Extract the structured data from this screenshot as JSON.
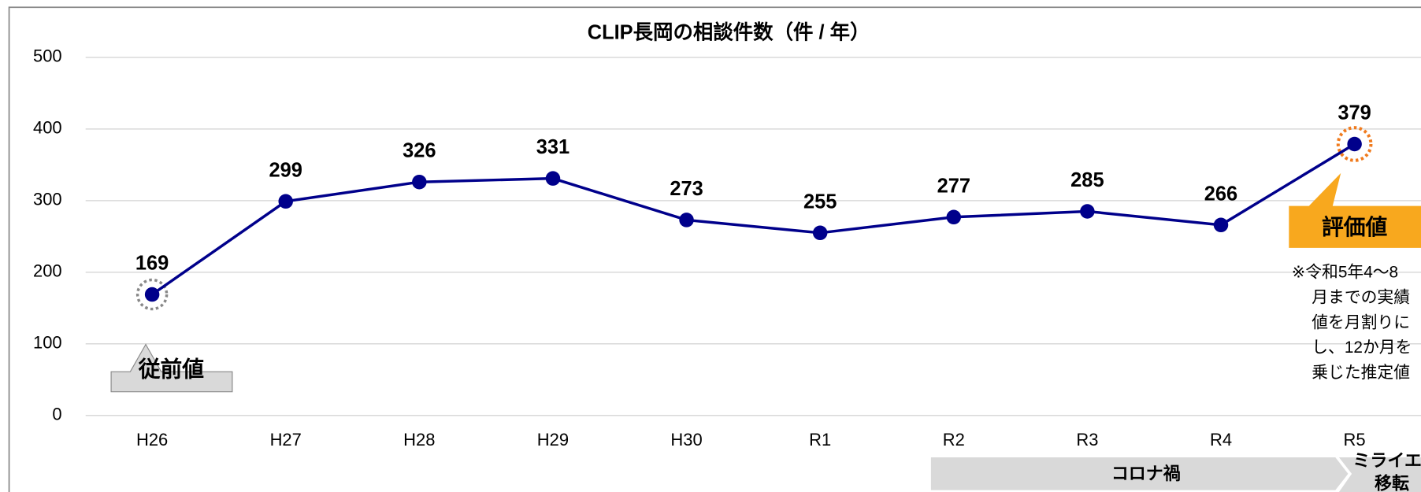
{
  "chart_data": {
    "type": "line",
    "title": "CLIP長岡の相談件数（件 / 年）",
    "categories": [
      "H26",
      "H27",
      "H28",
      "H29",
      "H30",
      "R1",
      "R2",
      "R3",
      "R4",
      "R5"
    ],
    "values": [
      169,
      299,
      326,
      331,
      273,
      255,
      277,
      285,
      266,
      379
    ],
    "color": "#00008b",
    "ylim": [
      0,
      500
    ],
    "yticks": [
      0,
      100,
      200,
      300,
      400,
      500
    ],
    "grid": true,
    "annotations": {
      "baseline": "従前値",
      "evaluation": "評価値",
      "note": [
        "※令和5年4～8",
        "月までの実績",
        "値を月割りに",
        "し、12か月を",
        "乗じた推定値"
      ],
      "period": "コロナ禍",
      "move": [
        "ミライエ",
        "移転"
      ]
    }
  }
}
